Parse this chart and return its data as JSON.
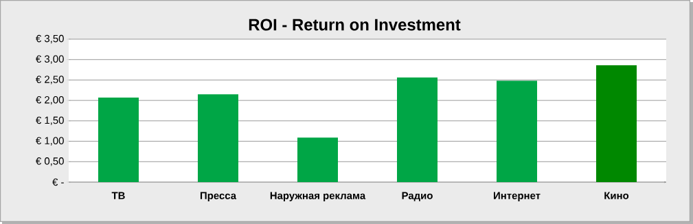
{
  "chart_data": {
    "type": "bar",
    "title": "ROI - Return on Investment",
    "categories": [
      "ТВ",
      "Пресса",
      "Наружная реклама",
      "Радио",
      "Интернет",
      "Кино"
    ],
    "values": [
      2.07,
      2.15,
      1.09,
      2.56,
      2.48,
      2.86
    ],
    "colors": [
      "#00a646",
      "#00a646",
      "#00a646",
      "#00a646",
      "#00a646",
      "#008800"
    ],
    "ylim": [
      0,
      3.5
    ],
    "yticks": [
      {
        "value": 0,
        "label": "€ -"
      },
      {
        "value": 0.5,
        "label": "€ 0,50"
      },
      {
        "value": 1,
        "label": "€ 1,00"
      },
      {
        "value": 1.5,
        "label": "€ 1,50"
      },
      {
        "value": 2,
        "label": "€ 2,00"
      },
      {
        "value": 2.5,
        "label": "€ 2,50"
      },
      {
        "value": 3,
        "label": "€ 3,00"
      },
      {
        "value": 3.5,
        "label": "€ 3,50"
      }
    ],
    "grid": "y"
  }
}
